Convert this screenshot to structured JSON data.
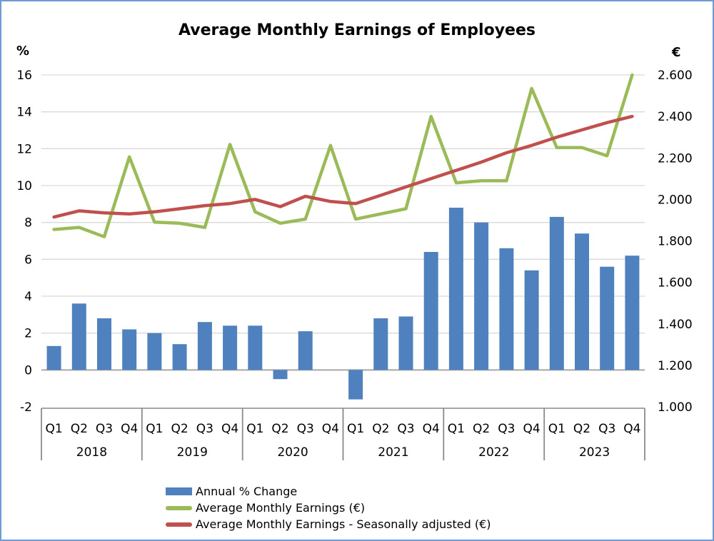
{
  "chart_data": {
    "type": "combo-bar-line",
    "title": "Average Monthly Earnings of Employees",
    "years": [
      "2018",
      "2019",
      "2020",
      "2021",
      "2022",
      "2023"
    ],
    "quarters": [
      "Q1",
      "Q2",
      "Q3",
      "Q4"
    ],
    "left_axis": {
      "unit": "%",
      "min": -2,
      "max": 16,
      "tick_step": 2,
      "ticks": [
        "16",
        "14",
        "12",
        "10",
        "8",
        "6",
        "4",
        "2",
        "0",
        "-2"
      ]
    },
    "right_axis": {
      "unit": "€",
      "min": 1000,
      "max": 2600,
      "tick_step": 200,
      "ticks": [
        "2.600",
        "2.400",
        "2.200",
        "2.000",
        "1.800",
        "1.600",
        "1.400",
        "1.200",
        "1.000"
      ]
    },
    "grid": true,
    "legend_position": "bottom-left",
    "series": [
      {
        "name": "Annual % Change",
        "type": "bar",
        "axis": "left",
        "color": "#4E81BD",
        "values": [
          1.3,
          3.6,
          2.8,
          2.2,
          2.0,
          1.4,
          2.6,
          2.4,
          2.4,
          -0.5,
          2.1,
          0.0,
          -1.6,
          2.8,
          2.9,
          6.4,
          8.8,
          8.0,
          6.6,
          5.4,
          8.3,
          7.4,
          5.6,
          6.2
        ]
      },
      {
        "name": "Average Monthly Earnings (€)",
        "type": "line",
        "axis": "right",
        "color": "#9BBB59",
        "values": [
          1855,
          1865,
          1820,
          2205,
          1890,
          1885,
          1865,
          2265,
          1940,
          1885,
          1905,
          2260,
          1905,
          1930,
          1955,
          2400,
          2080,
          2090,
          2090,
          2535,
          2250,
          2250,
          2210,
          2600
        ]
      },
      {
        "name": "Average Monthly Earnings - Seasonally adjusted (€)",
        "type": "line",
        "axis": "right",
        "color": "#C0504D",
        "values": [
          1915,
          1945,
          1935,
          1930,
          1940,
          1955,
          1970,
          1980,
          2000,
          1965,
          2015,
          1990,
          1980,
          2020,
          2060,
          2100,
          2140,
          2180,
          2225,
          2260,
          2300,
          2335,
          2370,
          2400
        ]
      }
    ],
    "colors": {
      "grid": "#D9D9D9",
      "zero_line": "#A6A6A6",
      "axis_box": "#8A8A8A",
      "frame_border": "#6E9AD8",
      "text": "#000000"
    }
  }
}
